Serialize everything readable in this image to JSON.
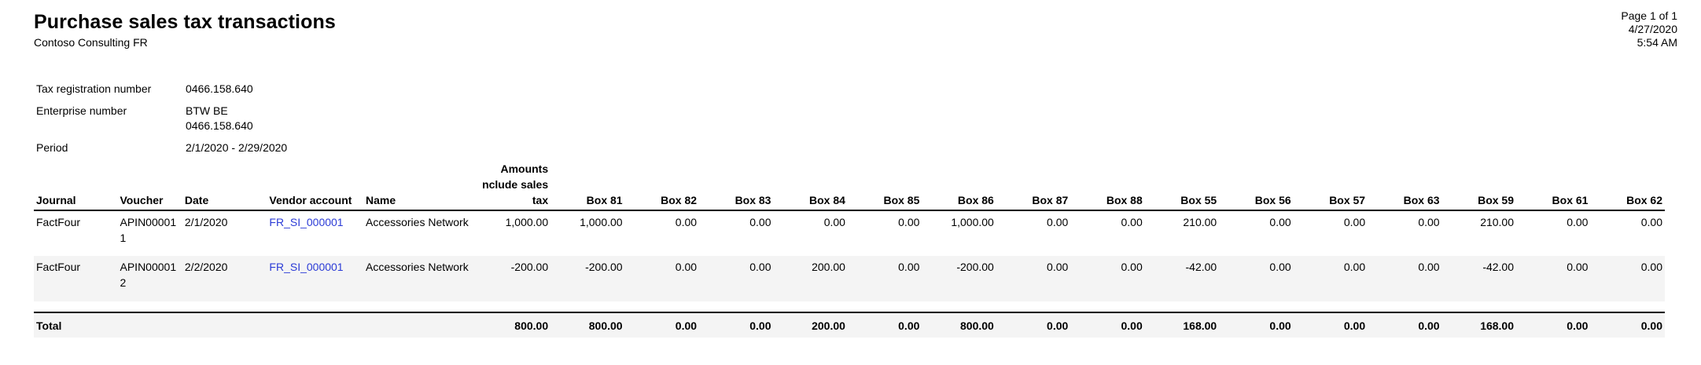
{
  "report": {
    "title": "Purchase sales tax transactions",
    "company": "Contoso Consulting FR",
    "page": "Page 1 of 1",
    "date": "4/27/2020",
    "time": "5:54 AM"
  },
  "meta": {
    "tax_registration_label": "Tax registration number",
    "tax_registration_value": "0466.158.640",
    "enterprise_label": "Enterprise number",
    "enterprise_value_1": "BTW BE",
    "enterprise_value_2": "0466.158.640",
    "period_label": "Period",
    "period_value": "2/1/2020 - 2/29/2020"
  },
  "table": {
    "headers": {
      "journal": "Journal",
      "voucher": "Voucher",
      "date": "Date",
      "vendor": "Vendor account",
      "name": "Name",
      "amounts_1": "Amounts",
      "amounts_2": "nclude sales",
      "amounts_3": "tax",
      "boxes": [
        "Box 81",
        "Box 82",
        "Box 83",
        "Box 84",
        "Box 85",
        "Box 86",
        "Box 87",
        "Box 88",
        "Box 55",
        "Box 56",
        "Box 57",
        "Box 63",
        "Box 59",
        "Box 61",
        "Box 62"
      ]
    },
    "rows": [
      {
        "journal": "FactFour",
        "voucher": "APIN000011",
        "date": "2/1/2020",
        "vendor": "FR_SI_000001",
        "name": "Accessories Network",
        "amount": "1,000.00",
        "boxes": [
          "1,000.00",
          "0.00",
          "0.00",
          "0.00",
          "0.00",
          "1,000.00",
          "0.00",
          "0.00",
          "210.00",
          "0.00",
          "0.00",
          "0.00",
          "210.00",
          "0.00",
          "0.00"
        ]
      },
      {
        "journal": "FactFour",
        "voucher": "APIN000012",
        "date": "2/2/2020",
        "vendor": "FR_SI_000001",
        "name": "Accessories Network",
        "amount": "-200.00",
        "boxes": [
          "-200.00",
          "0.00",
          "0.00",
          "200.00",
          "0.00",
          "-200.00",
          "0.00",
          "0.00",
          "-42.00",
          "0.00",
          "0.00",
          "0.00",
          "-42.00",
          "0.00",
          "0.00"
        ]
      }
    ],
    "total": {
      "label": "Total",
      "amount": "800.00",
      "boxes": [
        "800.00",
        "0.00",
        "0.00",
        "200.00",
        "0.00",
        "800.00",
        "0.00",
        "0.00",
        "168.00",
        "0.00",
        "0.00",
        "0.00",
        "168.00",
        "0.00",
        "0.00"
      ]
    }
  }
}
